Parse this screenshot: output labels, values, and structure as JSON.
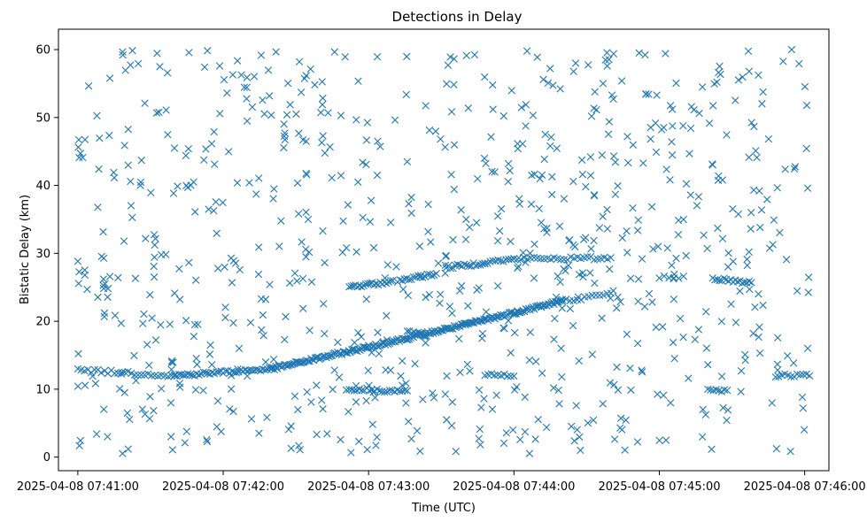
{
  "chart_data": {
    "type": "scatter",
    "title": "Detections in Delay",
    "xlabel": "Time (UTC)",
    "ylabel": "Bistatic Delay (km)",
    "marker": "x",
    "color": "#1f77b4",
    "grid": false,
    "xlim": [
      "2025-04-08 07:40:52",
      "2025-04-08 07:46:10"
    ],
    "ylim": [
      -2.0,
      63.0
    ],
    "x_ticks": [
      "2025-04-08 07:41:00",
      "2025-04-08 07:42:00",
      "2025-04-08 07:43:00",
      "2025-04-08 07:44:00",
      "2025-04-08 07:45:00",
      "2025-04-08 07:46:00"
    ],
    "y_ticks": [
      0,
      10,
      20,
      30,
      40,
      50,
      60
    ],
    "tracks": [
      {
        "t_start": "2025-04-08 07:41:00",
        "t_end": "2025-04-08 07:41:40",
        "y_start": 12.8,
        "y_end": 12.0,
        "count": 30
      },
      {
        "t_start": "2025-04-08 07:41:40",
        "t_end": "2025-04-08 07:42:20",
        "y_start": 12.0,
        "y_end": 13.0,
        "count": 45
      },
      {
        "t_start": "2025-04-08 07:42:20",
        "t_end": "2025-04-08 07:43:00",
        "y_start": 13.0,
        "y_end": 16.2,
        "count": 70
      },
      {
        "t_start": "2025-04-08 07:43:00",
        "t_end": "2025-04-08 07:43:40",
        "y_start": 16.2,
        "y_end": 19.5,
        "count": 70
      },
      {
        "t_start": "2025-04-08 07:43:40",
        "t_end": "2025-04-08 07:44:20",
        "y_start": 19.5,
        "y_end": 23.0,
        "count": 70
      },
      {
        "t_start": "2025-04-08 07:44:20",
        "t_end": "2025-04-08 07:44:40",
        "y_start": 23.0,
        "y_end": 24.0,
        "count": 14
      },
      {
        "t_start": "2025-04-08 07:42:52",
        "t_end": "2025-04-08 07:43:10",
        "y_start": 25.1,
        "y_end": 25.8,
        "count": 22
      },
      {
        "t_start": "2025-04-08 07:43:12",
        "t_end": "2025-04-08 07:43:28",
        "y_start": 26.0,
        "y_end": 27.0,
        "count": 18
      },
      {
        "t_start": "2025-04-08 07:43:32",
        "t_end": "2025-04-08 07:43:48",
        "y_start": 27.9,
        "y_end": 28.6,
        "count": 18
      },
      {
        "t_start": "2025-04-08 07:43:48",
        "t_end": "2025-04-08 07:44:00",
        "y_start": 28.7,
        "y_end": 29.1,
        "count": 12
      },
      {
        "t_start": "2025-04-08 07:44:00",
        "t_end": "2025-04-08 07:44:40",
        "y_start": 29.2,
        "y_end": 29.3,
        "count": 30
      },
      {
        "t_start": "2025-04-08 07:45:22",
        "t_end": "2025-04-08 07:45:38",
        "y_start": 26.3,
        "y_end": 25.7,
        "count": 18
      },
      {
        "t_start": "2025-04-08 07:42:52",
        "t_end": "2025-04-08 07:43:16",
        "y_start": 10.0,
        "y_end": 9.7,
        "count": 24
      },
      {
        "t_start": "2025-04-08 07:43:16",
        "t_end": "2025-04-08 07:43:24",
        "y_start": 18.5,
        "y_end": 17.8,
        "count": 10
      },
      {
        "t_start": "2025-04-08 07:43:48",
        "t_end": "2025-04-08 07:44:00",
        "y_start": 12.2,
        "y_end": 12.0,
        "count": 10
      },
      {
        "t_start": "2025-04-08 07:45:00",
        "t_end": "2025-04-08 07:45:10",
        "y_start": 26.5,
        "y_end": 26.5,
        "count": 6
      },
      {
        "t_start": "2025-04-08 07:45:20",
        "t_end": "2025-04-08 07:45:28",
        "y_start": 10.0,
        "y_end": 9.8,
        "count": 8
      },
      {
        "t_start": "2025-04-08 07:45:48",
        "t_end": "2025-04-08 07:46:02",
        "y_start": 12.0,
        "y_end": 12.0,
        "count": 12
      }
    ],
    "clutter": {
      "t_start": "2025-04-08 07:41:00",
      "t_end": "2025-04-08 07:46:02",
      "y_min": 0.5,
      "y_max": 60.0,
      "count": 800,
      "seed": 7
    }
  }
}
